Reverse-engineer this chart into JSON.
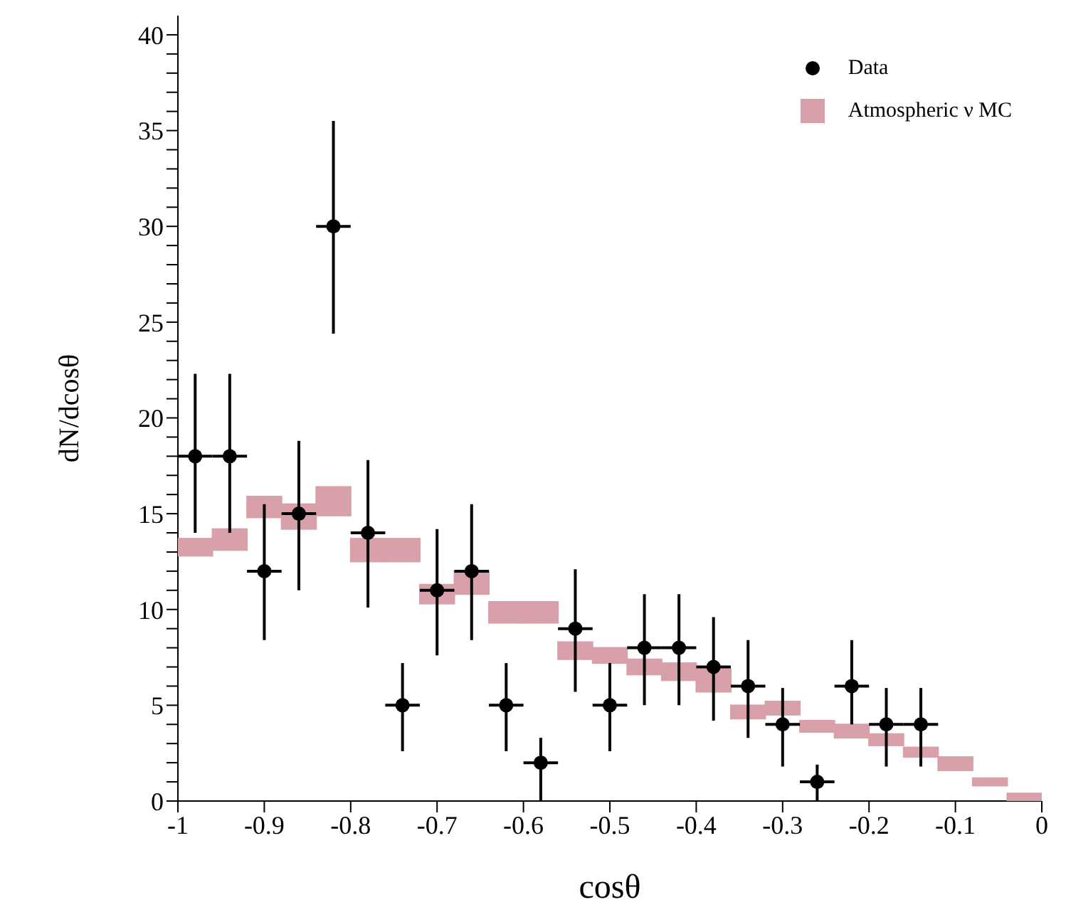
{
  "chart_data": {
    "type": "scatter",
    "xlabel": "cosθ",
    "ylabel": "dN/dcosθ",
    "xlim": [
      -1,
      0
    ],
    "ylim": [
      0,
      41
    ],
    "xticks": [
      {
        "value": -1,
        "label": "-1"
      },
      {
        "value": -0.9,
        "label": "-0.9"
      },
      {
        "value": -0.8,
        "label": "-0.8"
      },
      {
        "value": -0.7,
        "label": "-0.7"
      },
      {
        "value": -0.6,
        "label": "-0.6"
      },
      {
        "value": -0.5,
        "label": "-0.5"
      },
      {
        "value": -0.4,
        "label": "-0.4"
      },
      {
        "value": -0.3,
        "label": "-0.3"
      },
      {
        "value": -0.2,
        "label": "-0.2"
      },
      {
        "value": -0.1,
        "label": "-0.1"
      },
      {
        "value": 0,
        "label": "0"
      }
    ],
    "yticks": [
      0,
      {
        "value": 1,
        "label": null
      },
      {
        "value": 2,
        "label": null
      },
      {
        "value": 3,
        "label": null
      },
      {
        "value": 4,
        "label": null
      },
      5,
      {
        "value": 6,
        "label": null
      },
      {
        "value": 7,
        "label": null
      },
      {
        "value": 8,
        "label": null
      },
      {
        "value": 9,
        "label": null
      },
      10,
      {
        "value": 11,
        "label": null
      },
      {
        "value": 12,
        "label": null
      },
      {
        "value": 13,
        "label": null
      },
      {
        "value": 14,
        "label": null
      },
      15,
      {
        "value": 16,
        "label": null
      },
      {
        "value": 17,
        "label": null
      },
      {
        "value": 18,
        "label": null
      },
      {
        "value": 19,
        "label": null
      },
      20,
      {
        "value": 21,
        "label": null
      },
      {
        "value": 22,
        "label": null
      },
      {
        "value": 23,
        "label": null
      },
      {
        "value": 24,
        "label": null
      },
      25,
      {
        "value": 26,
        "label": null
      },
      {
        "value": 27,
        "label": null
      },
      {
        "value": 28,
        "label": null
      },
      {
        "value": 29,
        "label": null
      },
      30,
      {
        "value": 31,
        "label": null
      },
      {
        "value": 32,
        "label": null
      },
      {
        "value": 33,
        "label": null
      },
      {
        "value": 34,
        "label": null
      },
      35,
      {
        "value": 36,
        "label": null
      },
      {
        "value": 37,
        "label": null
      },
      {
        "value": 38,
        "label": null
      },
      {
        "value": 39,
        "label": null
      },
      40
    ],
    "grid": false,
    "legend": "top right",
    "series": [
      {
        "name": "Data",
        "type": "scatter",
        "marker": "circle",
        "color": "#000000",
        "x": [
          -0.98,
          -0.94,
          -0.9,
          -0.86,
          -0.82,
          -0.78,
          -0.74,
          -0.7,
          -0.66,
          -0.62,
          -0.58,
          -0.54,
          -0.5,
          -0.46,
          -0.42,
          -0.38,
          -0.34,
          -0.3,
          -0.26,
          -0.22,
          -0.18,
          -0.14
        ],
        "values": [
          18,
          18,
          12,
          15,
          30,
          14,
          5,
          11,
          12,
          5,
          2,
          9,
          5,
          8,
          8,
          7,
          6,
          4,
          1,
          6,
          4,
          4
        ],
        "errors": [
          [
            14,
            22.3
          ],
          [
            14,
            22.3
          ],
          [
            8.4,
            15.5
          ],
          [
            11,
            18.8
          ],
          [
            24.4,
            35.5
          ],
          [
            10.1,
            17.8
          ],
          [
            2.6,
            7.2
          ],
          [
            7.6,
            14.2
          ],
          [
            8.4,
            15.5
          ],
          [
            2.6,
            7.2
          ],
          [
            0,
            3.3
          ],
          [
            5.7,
            12.1
          ],
          [
            2.6,
            7.2
          ],
          [
            5,
            10.8
          ],
          [
            5,
            10.8
          ],
          [
            4.2,
            9.6
          ],
          [
            3.3,
            8.4
          ],
          [
            1.8,
            5.9
          ],
          [
            0,
            1.9
          ],
          [
            4,
            8.4
          ],
          [
            1.8,
            5.9
          ],
          [
            1.8,
            5.9
          ]
        ],
        "xerrors": [
          0.02,
          0.02,
          0.02,
          0.02,
          0.02,
          0.02,
          0.02,
          0.02,
          0.02,
          0.02,
          0.02,
          0.02,
          0.02,
          0.02,
          0.02,
          0.02,
          0.02,
          0.02,
          0.02,
          0.02,
          0.02,
          0.02
        ]
      },
      {
        "name": "Atmospheric ν MC",
        "type": "bar",
        "color": "#d8a0a8",
        "x": [
          -0.98,
          -0.94,
          -0.9,
          -0.86,
          -0.82,
          -0.78,
          -0.74,
          -0.7,
          -0.66,
          -0.62,
          -0.58,
          -0.54,
          -0.5,
          -0.46,
          -0.42,
          -0.38,
          -0.34,
          -0.3,
          -0.26,
          -0.22,
          -0.18,
          -0.14,
          -0.1,
          -0.06,
          -0.02
        ],
        "base": [
          12.8,
          13.1,
          14.8,
          14.2,
          14.9,
          12.5,
          12.5,
          10.3,
          10.8,
          9.3,
          9.3,
          7.4,
          7.2,
          6.6,
          6.3,
          5.7,
          4.3,
          4.5,
          3.6,
          3.3,
          2.9,
          2.3,
          1.6,
          0.8,
          0
        ],
        "values": [
          0.9,
          1.1,
          1.1,
          1.3,
          1.5,
          1.2,
          1.2,
          1,
          1.2,
          1.1,
          1.1,
          0.9,
          0.8,
          0.8,
          0.9,
          1.2,
          0.7,
          0.7,
          0.6,
          0.7,
          0.6,
          0.5,
          0.7,
          0.4,
          0.4
        ]
      }
    ]
  }
}
